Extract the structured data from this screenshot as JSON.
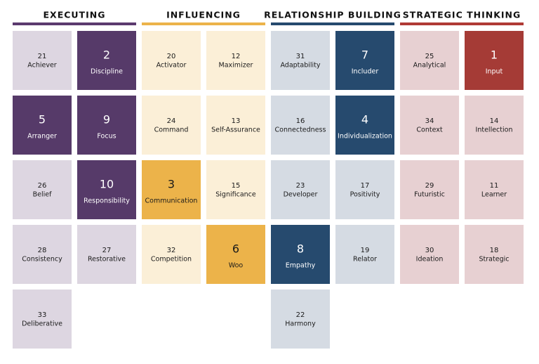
{
  "domains": [
    {
      "title": "EXECUTING",
      "bar_color": "#5b3a6e",
      "color": "#ddd6e1",
      "text_color": "#1a1a1a",
      "top_color": "#563a69",
      "top_text_color": "#ffffff",
      "strengths": [
        {
          "rank": 21,
          "name": "Achiever",
          "top": false
        },
        {
          "rank": 2,
          "name": "Discipline",
          "top": true
        },
        {
          "rank": 5,
          "name": "Arranger",
          "top": true
        },
        {
          "rank": 9,
          "name": "Focus",
          "top": true
        },
        {
          "rank": 26,
          "name": "Belief",
          "top": false
        },
        {
          "rank": 10,
          "name": "Responsibility",
          "top": true
        },
        {
          "rank": 28,
          "name": "Consistency",
          "top": false
        },
        {
          "rank": 27,
          "name": "Restorative",
          "top": false
        },
        {
          "rank": 33,
          "name": "Deliberative",
          "top": false
        }
      ]
    },
    {
      "title": "INFLUENCING",
      "bar_color": "#ecb34a",
      "color": "#fbefd7",
      "text_color": "#1a1a1a",
      "top_color": "#ecb34a",
      "top_text_color": "#1a1a1a",
      "strengths": [
        {
          "rank": 20,
          "name": "Activator",
          "top": false
        },
        {
          "rank": 12,
          "name": "Maximizer",
          "top": false
        },
        {
          "rank": 24,
          "name": "Command",
          "top": false
        },
        {
          "rank": 13,
          "name": "Self-Assurance",
          "top": false
        },
        {
          "rank": 3,
          "name": "Communication",
          "top": true
        },
        {
          "rank": 15,
          "name": "Significance",
          "top": false
        },
        {
          "rank": 32,
          "name": "Competition",
          "top": false
        },
        {
          "rank": 6,
          "name": "Woo",
          "top": true
        }
      ]
    },
    {
      "title": "RELATIONSHIP BUILDING",
      "bar_color": "#264a6e",
      "color": "#d5dbe3",
      "text_color": "#1a1a1a",
      "top_color": "#264a6e",
      "top_text_color": "#ffffff",
      "strengths": [
        {
          "rank": 31,
          "name": "Adaptability",
          "top": false
        },
        {
          "rank": 7,
          "name": "Includer",
          "top": true
        },
        {
          "rank": 16,
          "name": "Connectedness",
          "top": false
        },
        {
          "rank": 4,
          "name": "Individualization",
          "top": true
        },
        {
          "rank": 23,
          "name": "Developer",
          "top": false
        },
        {
          "rank": 17,
          "name": "Positivity",
          "top": false
        },
        {
          "rank": 8,
          "name": "Empathy",
          "top": true
        },
        {
          "rank": 19,
          "name": "Relator",
          "top": false
        },
        {
          "rank": 22,
          "name": "Harmony",
          "top": false
        }
      ]
    },
    {
      "title": "STRATEGIC THINKING",
      "bar_color": "#b03a35",
      "color": "#e7d0d2",
      "text_color": "#1a1a1a",
      "top_color": "#a53b36",
      "top_text_color": "#ffffff",
      "strengths": [
        {
          "rank": 25,
          "name": "Analytical",
          "top": false
        },
        {
          "rank": 1,
          "name": "Input",
          "top": true
        },
        {
          "rank": 34,
          "name": "Context",
          "top": false
        },
        {
          "rank": 14,
          "name": "Intellection",
          "top": false
        },
        {
          "rank": 29,
          "name": "Futuristic",
          "top": false
        },
        {
          "rank": 11,
          "name": "Learner",
          "top": false
        },
        {
          "rank": 30,
          "name": "Ideation",
          "top": false
        },
        {
          "rank": 18,
          "name": "Strategic",
          "top": false
        }
      ]
    }
  ]
}
